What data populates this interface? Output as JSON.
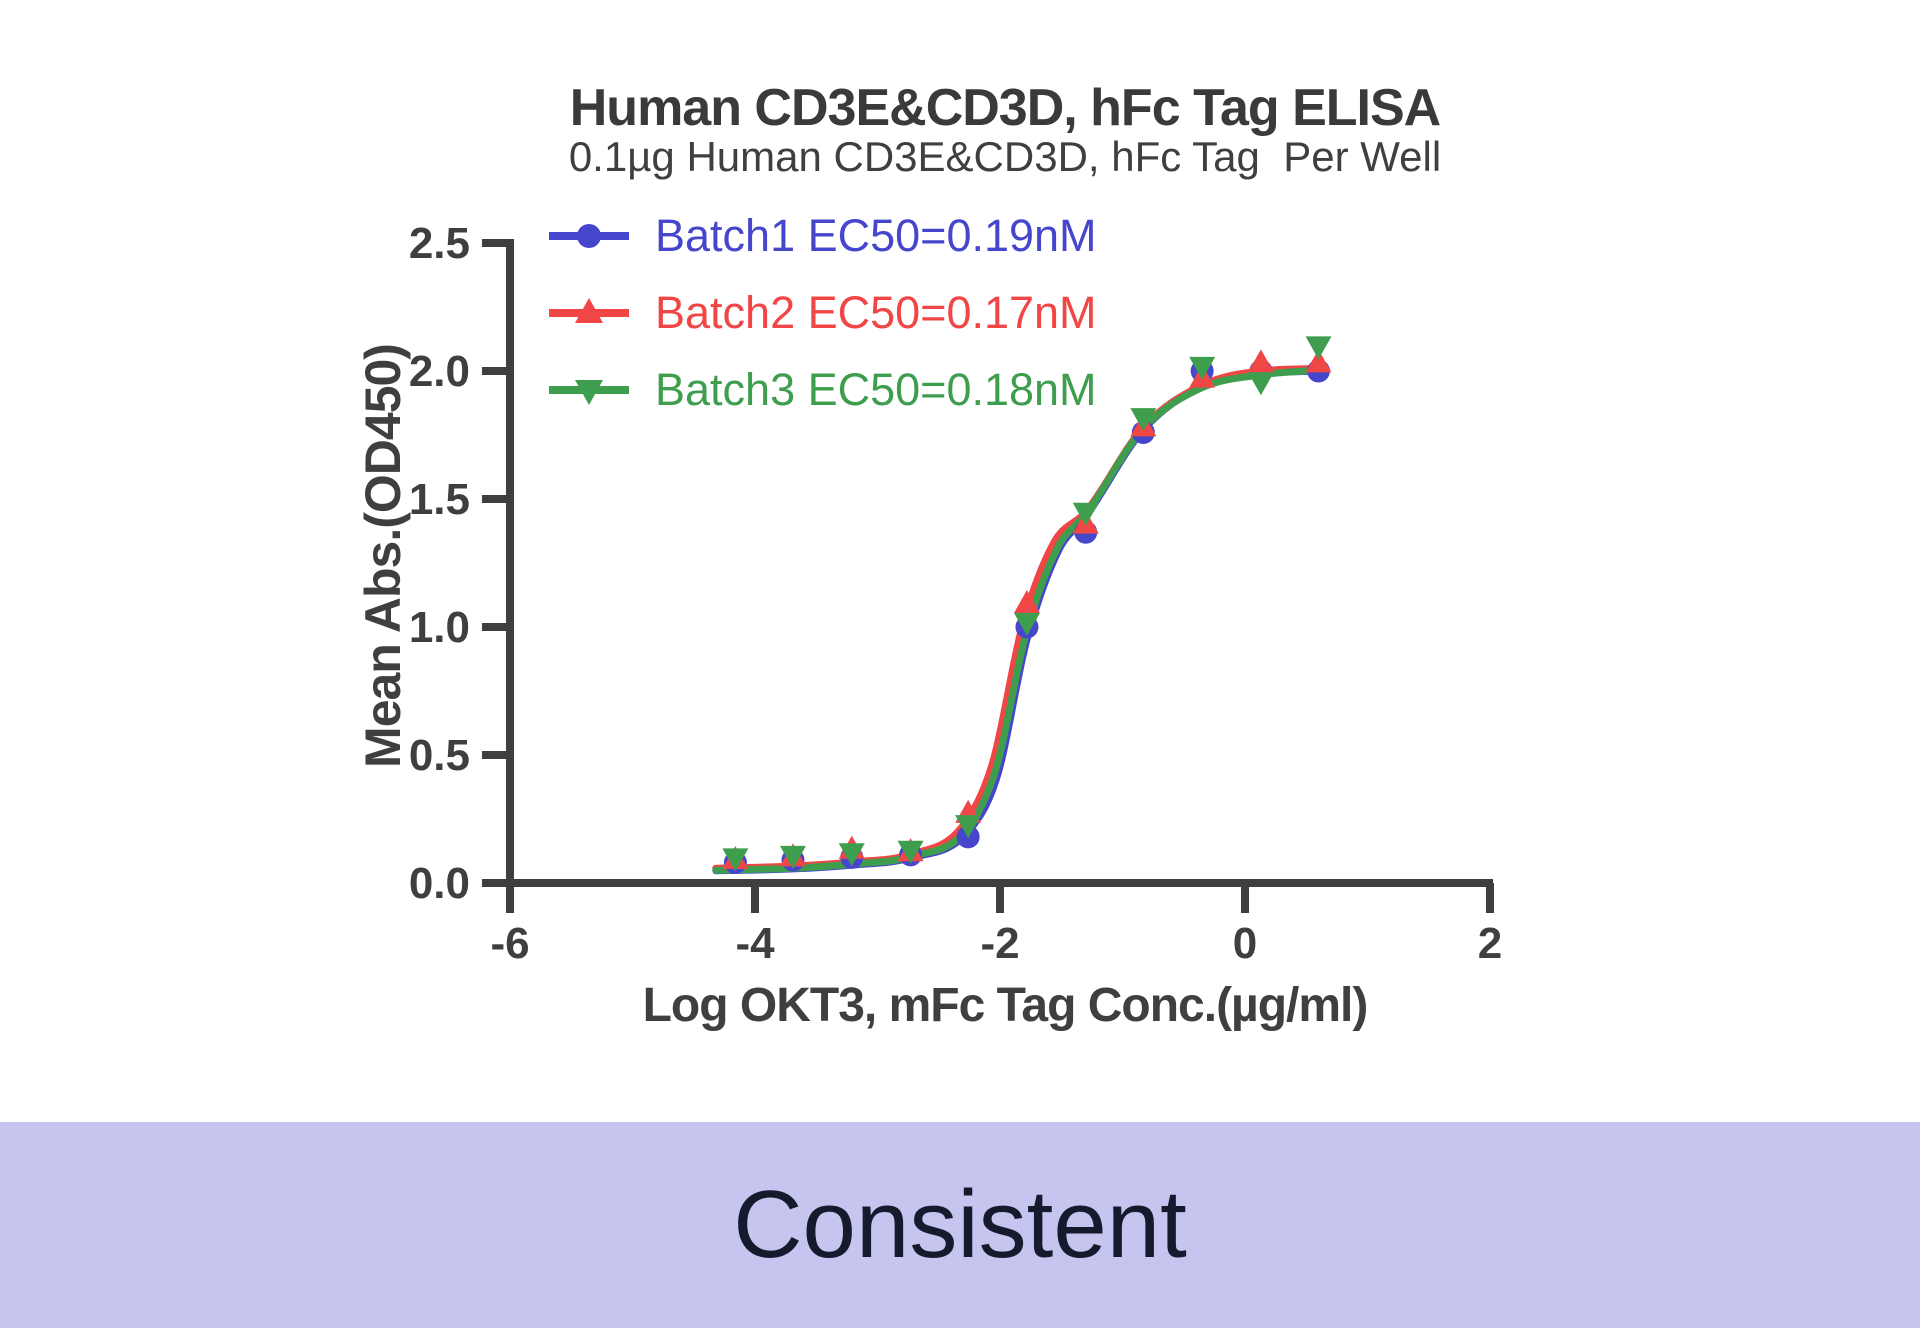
{
  "chart_data": {
    "type": "line",
    "title": "Human CD3E&CD3D, hFc Tag ELISA",
    "subtitle": "0.1µg Human CD3E&CD3D, hFc Tag  Per Well",
    "xlabel": "Log OKT3, mFc Tag Conc.(µg/ml)",
    "ylabel": "Mean Abs.(OD450)",
    "xlim": [
      -6,
      2
    ],
    "ylim": [
      0,
      2.5
    ],
    "x_ticks": [
      -6,
      -4,
      -2,
      0,
      2
    ],
    "y_ticks": [
      0,
      0.5,
      1,
      1.5,
      2,
      2.5
    ],
    "grid": false,
    "legend_position": "inside-top-left",
    "x": [
      -4.16,
      -3.69,
      -3.21,
      -2.73,
      -2.26,
      -1.78,
      -1.3,
      -0.83,
      -0.35,
      0.13,
      0.6
    ],
    "series": [
      {
        "name": "Batch1 EC50=0.19nM",
        "color": "#4646cd",
        "marker": "circle",
        "values": [
          0.08,
          0.09,
          0.1,
          0.11,
          0.18,
          1.0,
          1.37,
          1.76,
          2.0,
          2.0,
          2.0
        ],
        "curve": [
          [
            -4.32,
            0.048
          ],
          [
            -3.69,
            0.055
          ],
          [
            -3.21,
            0.07
          ],
          [
            -2.73,
            0.098
          ],
          [
            -2.26,
            0.2
          ],
          [
            -2.02,
            0.42
          ],
          [
            -1.78,
            0.95
          ],
          [
            -1.52,
            1.3
          ],
          [
            -1.3,
            1.43
          ],
          [
            -0.83,
            1.77
          ],
          [
            -0.35,
            1.94
          ],
          [
            0.13,
            1.99
          ],
          [
            0.65,
            2.0
          ]
        ]
      },
      {
        "name": "Batch2 EC50=0.17nM",
        "color": "#f04646",
        "marker": "triangle-up",
        "values": [
          0.09,
          0.1,
          0.13,
          0.12,
          0.27,
          1.09,
          1.4,
          1.78,
          1.97,
          2.03,
          2.03
        ],
        "curve": [
          [
            -4.32,
            0.058
          ],
          [
            -3.69,
            0.066
          ],
          [
            -3.21,
            0.082
          ],
          [
            -2.73,
            0.112
          ],
          [
            -2.31,
            0.22
          ],
          [
            -2.06,
            0.47
          ],
          [
            -1.82,
            1.0
          ],
          [
            -1.56,
            1.33
          ],
          [
            -1.3,
            1.45
          ],
          [
            -0.83,
            1.78
          ],
          [
            -0.35,
            1.945
          ],
          [
            0.13,
            2.0
          ],
          [
            0.65,
            2.01
          ]
        ]
      },
      {
        "name": "Batch3 EC50=0.18nM",
        "color": "#3e9e4d",
        "marker": "triangle-down",
        "values": [
          0.1,
          0.11,
          0.12,
          0.13,
          0.23,
          1.02,
          1.45,
          1.82,
          2.02,
          1.96,
          2.1
        ],
        "curve": [
          [
            -4.32,
            0.05
          ],
          [
            -3.69,
            0.058
          ],
          [
            -3.21,
            0.074
          ],
          [
            -2.73,
            0.103
          ],
          [
            -2.27,
            0.21
          ],
          [
            -2.03,
            0.45
          ],
          [
            -1.79,
            0.97
          ],
          [
            -1.53,
            1.31
          ],
          [
            -1.3,
            1.44
          ],
          [
            -0.83,
            1.775
          ],
          [
            -0.35,
            1.935
          ],
          [
            0.13,
            1.985
          ],
          [
            0.65,
            2.005
          ]
        ]
      }
    ]
  },
  "banner": {
    "text": "Consistent",
    "background": "#c5c5f0",
    "text_color": "#161a2d"
  },
  "colors": {
    "axis": "#3f3f3f",
    "page_background": "#ffffff"
  }
}
